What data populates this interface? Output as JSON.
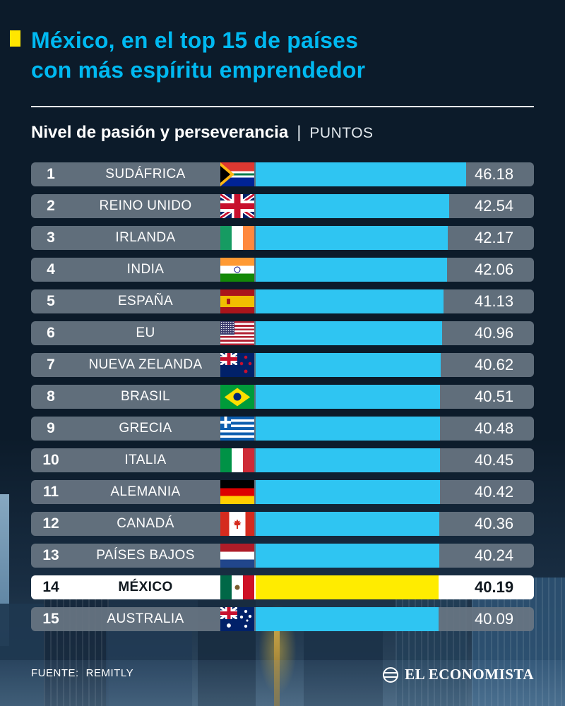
{
  "header": {
    "title_line1": "México, en el top 15 de países",
    "title_line2": "con más espíritu emprendedor",
    "subtitle": "Nivel de pasión y perseverancia",
    "subtitle_separator": "|",
    "unit": "PUNTOS"
  },
  "footer": {
    "source_label": "FUENTE:",
    "source_value": "REMITLY",
    "brand": "EL ECONOMISTA"
  },
  "colors": {
    "background": "#0c1b2a",
    "title_cyan": "#00b9f1",
    "bar_cyan": "#2fc5f2",
    "highlight_yellow": "#ffec00",
    "bullet_yellow": "#ffe600",
    "row_gray": "#687582",
    "highlight_row_white": "#ffffff"
  },
  "icons": {
    "bullet": "yellow-square-bullet",
    "brand_icon": "el-economista-globe-icon"
  },
  "chart_data": {
    "type": "bar",
    "orientation": "horizontal",
    "title": "México, en el top 15 de países con más espíritu emprendedor",
    "subtitle": "Nivel de pasión y perseverancia",
    "unit": "PUNTOS",
    "source": "REMITLY",
    "max_value": 46.18,
    "highlight_country": "MÉXICO",
    "rows": [
      {
        "rank": 1,
        "country": "SUDÁFRICA",
        "flag": "za",
        "value": 46.18,
        "highlight": false
      },
      {
        "rank": 2,
        "country": "REINO UNIDO",
        "flag": "gb",
        "value": 42.54,
        "highlight": false
      },
      {
        "rank": 3,
        "country": "IRLANDA",
        "flag": "ie",
        "value": 42.17,
        "highlight": false
      },
      {
        "rank": 4,
        "country": "INDIA",
        "flag": "in",
        "value": 42.06,
        "highlight": false
      },
      {
        "rank": 5,
        "country": "ESPAÑA",
        "flag": "es",
        "value": 41.13,
        "highlight": false
      },
      {
        "rank": 6,
        "country": "EU",
        "flag": "us",
        "value": 40.96,
        "highlight": false
      },
      {
        "rank": 7,
        "country": "NUEVA ZELANDA",
        "flag": "nz",
        "value": 40.62,
        "highlight": false
      },
      {
        "rank": 8,
        "country": "BRASIL",
        "flag": "br",
        "value": 40.51,
        "highlight": false
      },
      {
        "rank": 9,
        "country": "GRECIA",
        "flag": "gr",
        "value": 40.48,
        "highlight": false
      },
      {
        "rank": 10,
        "country": "ITALIA",
        "flag": "it",
        "value": 40.45,
        "highlight": false
      },
      {
        "rank": 11,
        "country": "ALEMANIA",
        "flag": "de",
        "value": 40.42,
        "highlight": false
      },
      {
        "rank": 12,
        "country": "CANADÁ",
        "flag": "ca",
        "value": 40.36,
        "highlight": false
      },
      {
        "rank": 13,
        "country": "PAÍSES BAJOS",
        "flag": "nl",
        "value": 40.24,
        "highlight": false
      },
      {
        "rank": 14,
        "country": "MÉXICO",
        "flag": "mx",
        "value": 40.19,
        "highlight": true
      },
      {
        "rank": 15,
        "country": "AUSTRALIA",
        "flag": "au",
        "value": 40.09,
        "highlight": false
      }
    ]
  }
}
